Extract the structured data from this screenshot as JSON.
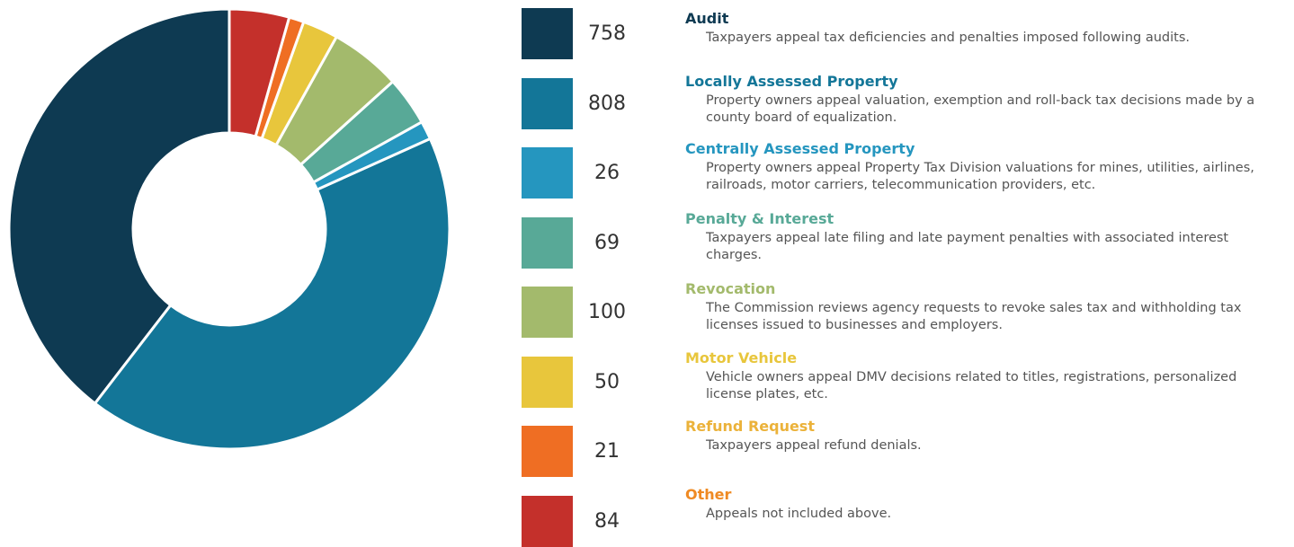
{
  "chart_data": {
    "type": "donut",
    "categories": [
      "Audit",
      "Locally Assessed Property",
      "Centrally Assessed Property",
      "Penalty & Interest",
      "Revocation",
      "Motor Vehicle",
      "Refund Request",
      "Other"
    ],
    "values": [
      758,
      808,
      26,
      69,
      100,
      50,
      21,
      84
    ],
    "colors": [
      "#0e3a52",
      "#137698",
      "#2596bf",
      "#58a997",
      "#a3ba6c",
      "#e8c63c",
      "#ef6e23",
      "#c4302b"
    ],
    "label_colors": [
      "#0e3a52",
      "#137698",
      "#2596bf",
      "#58a997",
      "#a3ba6c",
      "#e8c63c",
      "#ebb23a",
      "#ef8a23"
    ],
    "descriptions": [
      "Taxpayers appeal tax deficiencies and penalties imposed following audits.",
      "Property owners appeal valuation, exemption and roll-back tax decisions made by a county board of equalization.",
      "Property owners appeal Property Tax Division valuations for mines, utilities, airlines, railroads, motor carriers, telecommunication providers, etc.",
      "Taxpayers appeal late filing and late payment penalties with associated interest charges.",
      "The Commission reviews agency requests to revoke sales tax and withholding tax licenses issued to businesses and employers.",
      "Vehicle owners appeal DMV decisions related to titles, registrations, personalized license plates, etc.",
      "Taxpayers appeal refund denials.",
      "Appeals not included above."
    ]
  }
}
